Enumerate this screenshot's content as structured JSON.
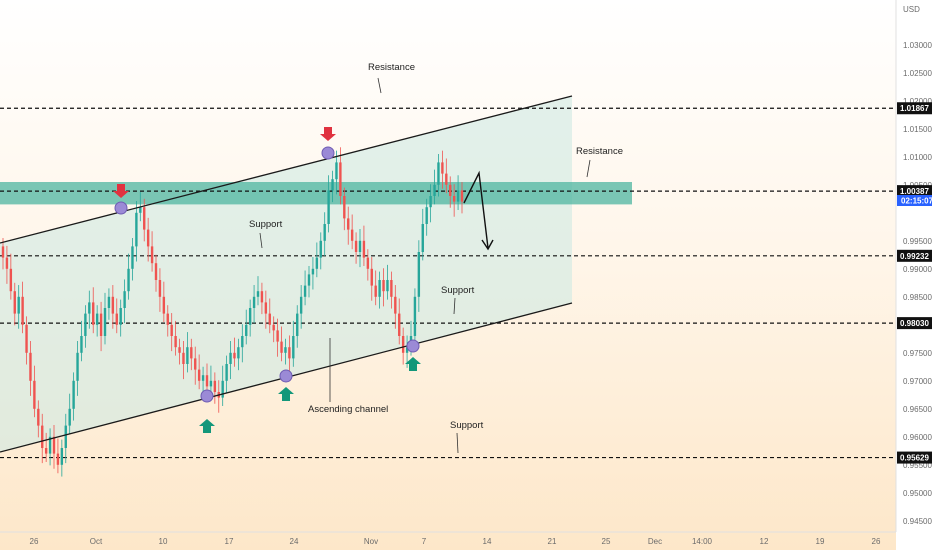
{
  "chart_data": {
    "type": "candlestick",
    "currency": "USD",
    "y_ticks": [
      "1.03000",
      "1.02500",
      "1.02000",
      "1.01500",
      "1.01000",
      "1.00500",
      "0.99500",
      "0.99000",
      "0.98500",
      "0.97500",
      "0.97000",
      "0.96500",
      "0.96000",
      "0.95500",
      "0.95000",
      "0.94500"
    ],
    "ylim": [
      0.943,
      1.038
    ],
    "x_ticks": [
      "26",
      "Oct",
      "10",
      "17",
      "24",
      "Nov",
      "7",
      "14",
      "21",
      "25",
      "Dec",
      "14:00",
      "12",
      "19",
      "26"
    ],
    "price_levels": [
      {
        "label": "1.01867",
        "value": 1.01867
      },
      {
        "label": "1.00387",
        "value": 1.00387
      },
      {
        "label": "0.99232",
        "value": 0.99232
      },
      {
        "label": "0.98030",
        "value": 0.9803
      },
      {
        "label": "0.95629",
        "value": 0.95629
      }
    ],
    "current_price_tag": "02:15:07",
    "resistance_zone": [
      1.0015,
      1.0055
    ],
    "annotations": [
      "Resistance",
      "Resistance",
      "Support",
      "Support",
      "Support",
      "Ascending channel"
    ],
    "closes": [
      0.992,
      0.99,
      0.986,
      0.982,
      0.985,
      0.98,
      0.975,
      0.97,
      0.965,
      0.962,
      0.958,
      0.957,
      0.96,
      0.957,
      0.955,
      0.958,
      0.962,
      0.965,
      0.97,
      0.975,
      0.978,
      0.982,
      0.984,
      0.98,
      0.982,
      0.978,
      0.983,
      0.985,
      0.982,
      0.98,
      0.983,
      0.986,
      0.99,
      0.994,
      1.0,
      1.001,
      0.997,
      0.994,
      0.991,
      0.988,
      0.985,
      0.982,
      0.98,
      0.978,
      0.976,
      0.975,
      0.973,
      0.976,
      0.974,
      0.972,
      0.97,
      0.971,
      0.969,
      0.97,
      0.968,
      0.967,
      0.97,
      0.973,
      0.975,
      0.974,
      0.976,
      0.978,
      0.98,
      0.983,
      0.985,
      0.986,
      0.984,
      0.982,
      0.98,
      0.979,
      0.977,
      0.975,
      0.976,
      0.974,
      0.978,
      0.982,
      0.985,
      0.987,
      0.989,
      0.99,
      0.992,
      0.995,
      0.998,
      1.004,
      1.006,
      1.009,
      1.003,
      0.999,
      0.997,
      0.995,
      0.993,
      0.995,
      0.992,
      0.99,
      0.987,
      0.985,
      0.988,
      0.986,
      0.988,
      0.985,
      0.982,
      0.978,
      0.975,
      0.976,
      0.978,
      0.985,
      0.993,
      0.998,
      1.001,
      1.003,
      1.005,
      1.009,
      1.007,
      1.005,
      1.003,
      1.002,
      1.004,
      1.002
    ]
  }
}
